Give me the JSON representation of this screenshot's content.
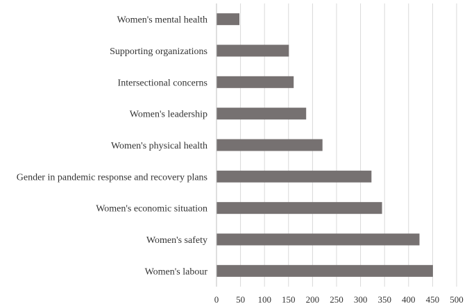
{
  "chart_data": {
    "type": "bar",
    "orientation": "horizontal",
    "title": "",
    "xlabel": "",
    "ylabel": "",
    "categories": [
      "Women's mental health",
      "Supporting organizations",
      "Intersectional concerns",
      "Women's leadership",
      "Women's physical health",
      "Gender in pandemic response and recovery plans",
      "Women's economic situation",
      "Women's safety",
      "Women's labour"
    ],
    "values": [
      47,
      150,
      160,
      186,
      220,
      322,
      344,
      422,
      450
    ],
    "xlim": [
      0,
      500
    ],
    "xticks": [
      0,
      50,
      100,
      150,
      200,
      250,
      300,
      350,
      400,
      450,
      500
    ],
    "grid": true,
    "legend": "none",
    "bar_color": "#767171"
  }
}
